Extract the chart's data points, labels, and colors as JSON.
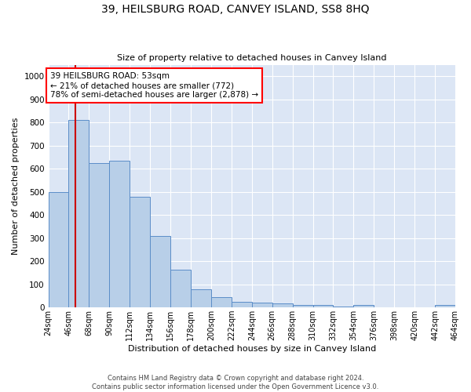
{
  "title": "39, HEILSBURG ROAD, CANVEY ISLAND, SS8 8HQ",
  "subtitle": "Size of property relative to detached houses in Canvey Island",
  "xlabel": "Distribution of detached houses by size in Canvey Island",
  "ylabel": "Number of detached properties",
  "footer1": "Contains HM Land Registry data © Crown copyright and database right 2024.",
  "footer2": "Contains public sector information licensed under the Open Government Licence v3.0.",
  "annotation_line1": "39 HEILSBURG ROAD: 53sqm",
  "annotation_line2": "← 21% of detached houses are smaller (772)",
  "annotation_line3": "78% of semi-detached houses are larger (2,878) →",
  "bar_color": "#b8cfe8",
  "bar_edge_color": "#5b8dc8",
  "vline_color": "#cc0000",
  "vline_x": 53,
  "bin_edges": [
    24,
    46,
    68,
    90,
    112,
    134,
    156,
    178,
    200,
    222,
    244,
    266,
    288,
    310,
    332,
    354,
    376,
    398,
    420,
    442,
    464
  ],
  "bar_heights": [
    500,
    810,
    625,
    635,
    480,
    310,
    163,
    80,
    45,
    25,
    20,
    17,
    12,
    10,
    5,
    10,
    0,
    0,
    0,
    10
  ],
  "ylim": [
    0,
    1050
  ],
  "yticks": [
    0,
    100,
    200,
    300,
    400,
    500,
    600,
    700,
    800,
    900,
    1000
  ],
  "bg_color": "#dce6f5",
  "figsize": [
    6.0,
    5.0
  ],
  "dpi": 100,
  "title_fontsize": 10,
  "subtitle_fontsize": 8,
  "ylabel_fontsize": 8,
  "xlabel_fontsize": 8,
  "tick_fontsize": 7,
  "footer_fontsize": 6,
  "annot_fontsize": 7.5
}
